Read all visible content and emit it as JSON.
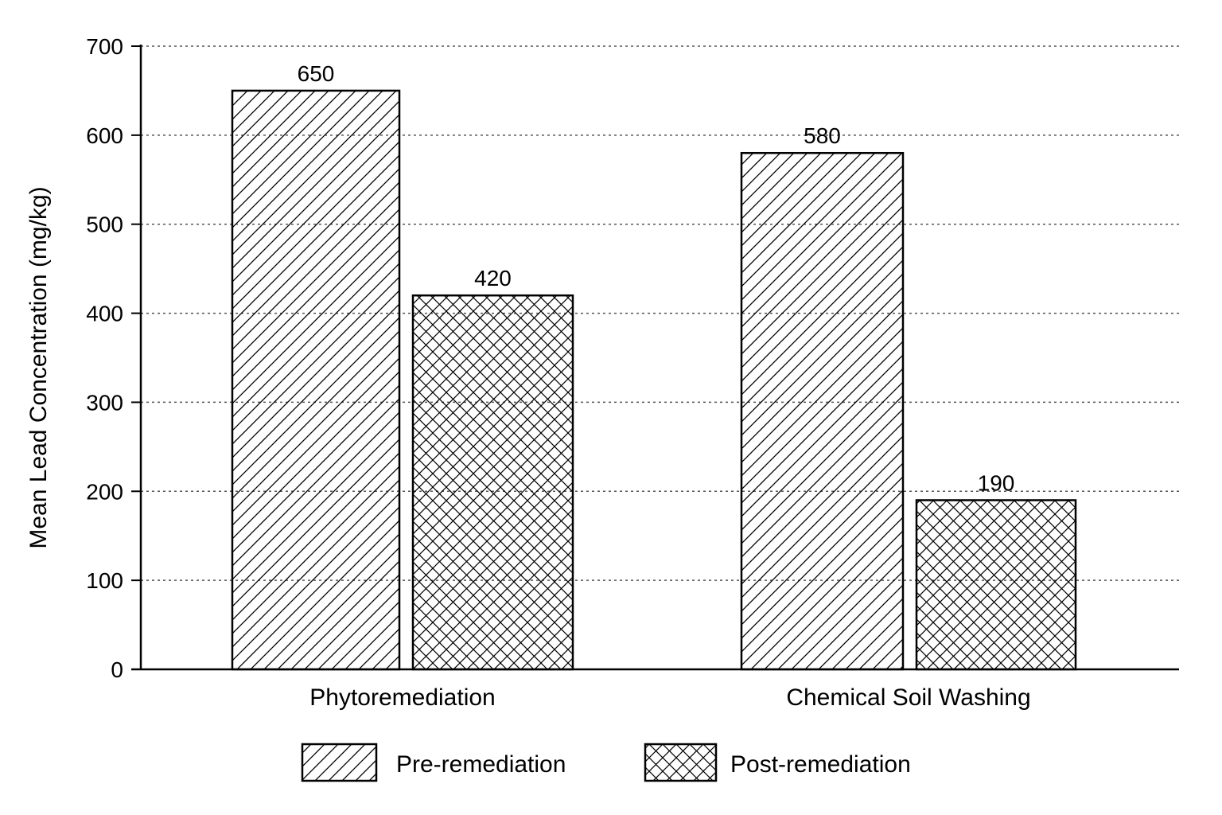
{
  "chart_data": {
    "type": "bar",
    "title": "",
    "xlabel": "",
    "ylabel": "Mean Lead Concentration (mg/kg)",
    "ylim": [
      0,
      700
    ],
    "yticks": [
      0,
      100,
      200,
      300,
      400,
      500,
      600,
      700
    ],
    "grid": true,
    "categories": [
      "Phytoremediation",
      "Chemical Soil Washing"
    ],
    "series": [
      {
        "name": "Pre-remediation",
        "pattern": "diagonal-hatch",
        "values": [
          650,
          580
        ]
      },
      {
        "name": "Post-remediation",
        "pattern": "cross-hatch",
        "values": [
          420,
          190
        ]
      }
    ],
    "data_labels": [
      [
        "650",
        "580"
      ],
      [
        "420",
        "190"
      ]
    ],
    "legend": {
      "placement": "bottom-center"
    },
    "colors": {
      "stroke": "#000000",
      "fill": "#ffffff",
      "grid": "#555555"
    }
  }
}
